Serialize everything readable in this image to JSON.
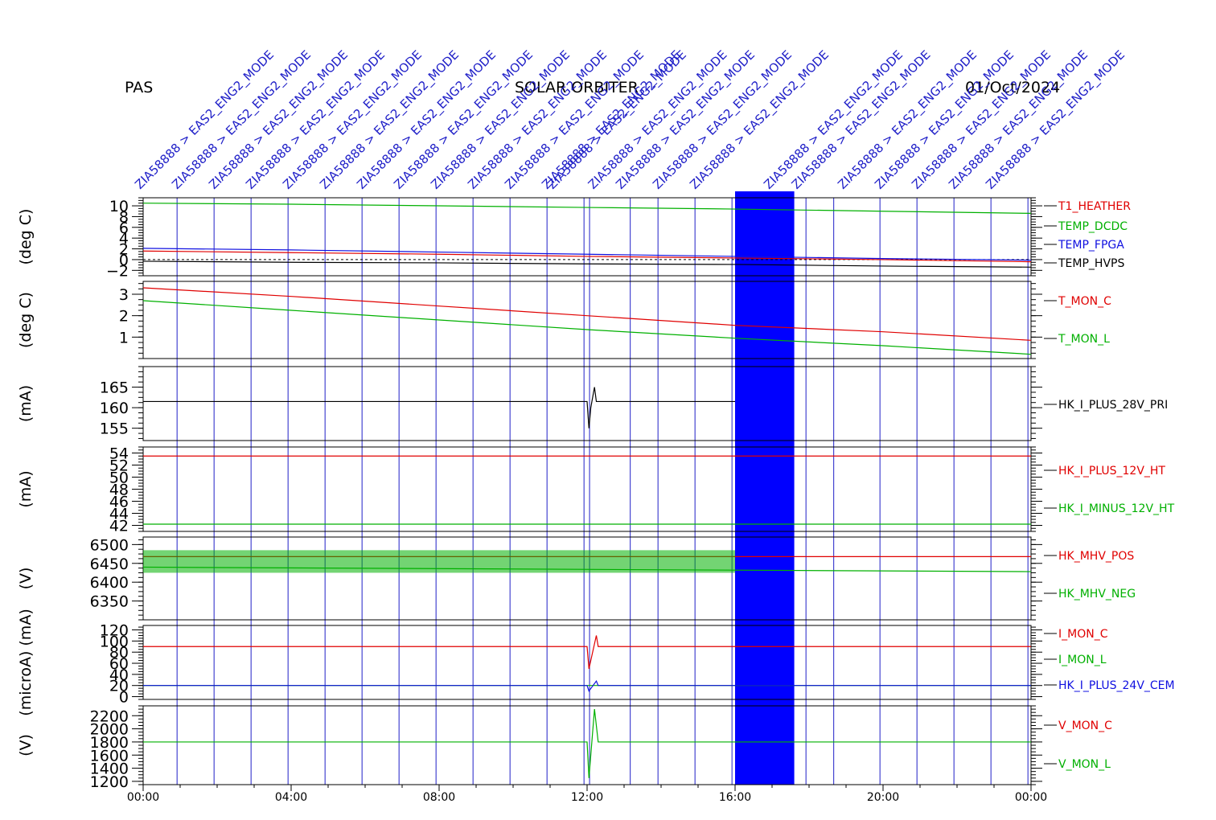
{
  "header": {
    "left": "PAS",
    "center": "SOLAR ORBITER",
    "right": "01/Oct/2024"
  },
  "colors": {
    "red": "#e00000",
    "green": "#00b000",
    "blue": "#1010e0",
    "black": "#000000",
    "event": "#2020c8"
  },
  "event_label": "ZIA58888 > EAS2_ENG2_MODE",
  "events": [
    "00:55",
    "01:55",
    "02:55",
    "03:55",
    "04:55",
    "05:55",
    "06:55",
    "07:55",
    "08:55",
    "09:55",
    "10:55",
    "11:55",
    "12:04",
    "13:10",
    "13:55",
    "14:55",
    "15:55",
    "17:55",
    "18:40",
    "19:55",
    "20:55",
    "21:55",
    "22:55",
    "23:55"
  ],
  "time_axis": {
    "labels": [
      "00:00",
      "04:00",
      "08:00",
      "12:00",
      "16:00",
      "20:00",
      "00:00"
    ],
    "start_hour": 0,
    "end_hour": 24
  },
  "chart_data": [
    {
      "type": "line",
      "name": "temperatures",
      "ylabel": "(deg C)",
      "ylim": [
        -3,
        11.5
      ],
      "ticks": [
        10,
        8,
        6,
        4,
        2,
        0,
        -2
      ],
      "tick_labels": [
        "10",
        "8",
        "6",
        "4",
        "2",
        "0",
        "−2"
      ],
      "series": [
        {
          "name": "T1_HEATHER",
          "color": "#e00000",
          "x": [
            0,
            4,
            8,
            12,
            16,
            20,
            24
          ],
          "y": [
            1.6,
            1.3,
            1.0,
            0.6,
            0.3,
            0.0,
            -0.4
          ]
        },
        {
          "name": "TEMP_DCDC",
          "color": "#00b000",
          "x": [
            0,
            4,
            8,
            12,
            16,
            20,
            24
          ],
          "y": [
            10.5,
            10.3,
            10.0,
            9.7,
            9.4,
            9.0,
            8.6
          ]
        },
        {
          "name": "TEMP_FPGA",
          "color": "#1010e0",
          "x": [
            0,
            4,
            8,
            12,
            16,
            20,
            24
          ],
          "y": [
            2.1,
            1.8,
            1.4,
            1.0,
            0.6,
            0.2,
            -0.1
          ]
        },
        {
          "name": "TEMP_HVPS",
          "color": "#000000",
          "x": [
            0,
            4,
            8,
            12,
            16,
            20,
            24
          ],
          "y": [
            -0.3,
            -0.5,
            -0.6,
            -0.8,
            -0.9,
            -1.2,
            -1.4
          ]
        }
      ]
    },
    {
      "type": "line",
      "name": "t_mon",
      "ylabel": "(deg C)",
      "ylim": [
        0,
        3.6
      ],
      "ticks": [
        3,
        2,
        1
      ],
      "tick_labels": [
        "3",
        "2",
        "1"
      ],
      "series": [
        {
          "name": "T_MON_C",
          "color": "#e00000",
          "x": [
            0,
            4,
            8,
            12,
            16,
            20,
            24
          ],
          "y": [
            3.3,
            2.9,
            2.45,
            2.0,
            1.55,
            1.25,
            0.85
          ]
        },
        {
          "name": "T_MON_L",
          "color": "#00b000",
          "x": [
            0,
            4,
            8,
            12,
            16,
            20,
            24
          ],
          "y": [
            2.7,
            2.25,
            1.8,
            1.35,
            0.95,
            0.6,
            0.2
          ]
        }
      ]
    },
    {
      "type": "line",
      "name": "current_28v",
      "ylabel": "(mA)",
      "ylim": [
        152,
        170
      ],
      "ticks": [
        165,
        160,
        155
      ],
      "tick_labels": [
        "165",
        "160",
        "155"
      ],
      "series": [
        {
          "name": "HK_I_PLUS_28V_PRI",
          "color": "#000000",
          "x": [
            0,
            12,
            12.05,
            12.1,
            12.2,
            12.25,
            16
          ],
          "y": [
            161.5,
            161.5,
            155,
            160,
            165,
            161.5,
            161.5
          ]
        }
      ]
    },
    {
      "type": "line",
      "name": "current_12v",
      "ylabel": "(mA)",
      "ylim": [
        41,
        55
      ],
      "ticks": [
        54,
        52,
        50,
        48,
        46,
        44,
        42
      ],
      "tick_labels": [
        "54",
        "52",
        "50",
        "48",
        "46",
        "44",
        "42"
      ],
      "series": [
        {
          "name": "HK_I_PLUS_12V_HT",
          "color": "#e00000",
          "x": [
            0,
            24
          ],
          "y": [
            53.5,
            53.5
          ]
        },
        {
          "name": "HK_I_MINUS_12V_HT",
          "color": "#00b000",
          "x": [
            0,
            24
          ],
          "y": [
            42.2,
            42.2
          ]
        }
      ]
    },
    {
      "type": "line",
      "name": "mhv",
      "ylabel": "(V)",
      "ylim": [
        6300,
        6520
      ],
      "ticks": [
        6500,
        6450,
        6400,
        6350
      ],
      "tick_labels": [
        "6500",
        "6450",
        "6400",
        "6350"
      ],
      "series": [
        {
          "name": "HK_MHV_POS",
          "color": "#e00000",
          "x": [
            0,
            24
          ],
          "y": [
            6468,
            6468
          ]
        },
        {
          "name": "HK_MHV_NEG",
          "color": "#00b000",
          "x": [
            0,
            24
          ],
          "y": [
            6440,
            6428
          ]
        }
      ]
    },
    {
      "type": "line",
      "name": "mcp_current",
      "ylabel": "(microA) (mA)",
      "ylim": [
        -5,
        128
      ],
      "ticks": [
        120,
        100,
        80,
        60,
        40,
        20,
        0
      ],
      "tick_labels": [
        "120",
        "100",
        "80",
        "60",
        "40",
        "20",
        "0"
      ],
      "series": [
        {
          "name": "I_MON_C",
          "color": "#e00000",
          "x": [
            0,
            12,
            12.05,
            12.25,
            12.3,
            24
          ],
          "y": [
            90,
            90,
            50,
            110,
            90,
            90
          ]
        },
        {
          "name": "I_MON_L",
          "color": "#00b000",
          "x": [
            0,
            24
          ],
          "y": [
            20,
            20
          ]
        },
        {
          "name": "HK_I_PLUS_24V_CEM",
          "color": "#1010e0",
          "x": [
            0,
            12,
            12.05,
            12.25,
            12.3,
            24
          ],
          "y": [
            20,
            20,
            10,
            28,
            20,
            20
          ]
        }
      ]
    },
    {
      "type": "line",
      "name": "mcp_voltage",
      "ylabel": "(V)",
      "ylim": [
        1150,
        2350
      ],
      "ticks": [
        2200,
        2000,
        1800,
        1600,
        1400,
        1200
      ],
      "tick_labels": [
        "2200",
        "2000",
        "1800",
        "1600",
        "1400",
        "1200"
      ],
      "series": [
        {
          "name": "V_MON_C",
          "color": "#e00000",
          "x": [],
          "y": []
        },
        {
          "name": "V_MON_L",
          "color": "#00b000",
          "x": [
            0,
            12,
            12.05,
            12.2,
            12.3,
            24
          ],
          "y": [
            1800,
            1800,
            1250,
            2300,
            1800,
            1800
          ]
        }
      ]
    }
  ]
}
